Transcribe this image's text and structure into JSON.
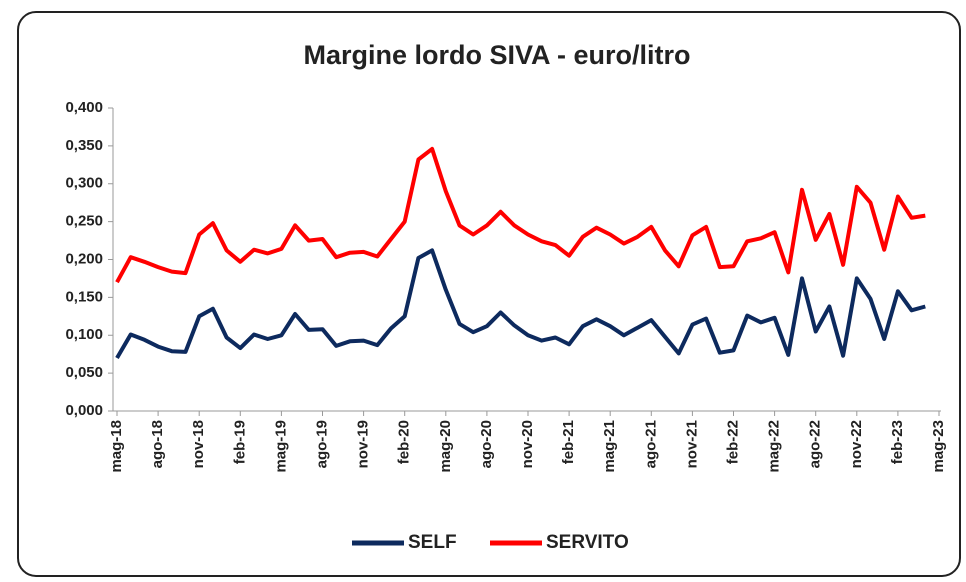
{
  "chart_data": {
    "type": "line",
    "title": "Margine lordo SIVA - euro/litro",
    "categories": [
      "mag-18",
      null,
      null,
      "ago-18",
      null,
      null,
      "nov-18",
      null,
      null,
      "feb-19",
      null,
      null,
      "mag-19",
      null,
      null,
      "ago-19",
      null,
      null,
      "nov-19",
      null,
      null,
      "feb-20",
      null,
      null,
      "mag-20",
      null,
      null,
      "ago-20",
      null,
      null,
      "nov-20",
      null,
      null,
      "feb-21",
      null,
      null,
      "mag-21",
      null,
      null,
      "ago-21",
      null,
      null,
      "nov-21",
      null,
      null,
      "feb-22",
      null,
      null,
      "mag-22",
      null,
      null,
      "ago-22",
      null,
      null,
      "nov-22",
      null,
      null,
      "feb-23",
      null,
      null,
      "mag-23"
    ],
    "series": [
      {
        "name": "SELF",
        "color": "#0d2a5e",
        "values": [
          0.07,
          0.101,
          0.094,
          0.085,
          0.079,
          0.078,
          0.125,
          0.135,
          0.097,
          0.083,
          0.101,
          0.095,
          0.1,
          0.128,
          0.107,
          0.108,
          0.086,
          0.092,
          0.093,
          0.087,
          0.109,
          0.125,
          0.202,
          0.212,
          0.16,
          0.115,
          0.104,
          0.112,
          0.13,
          0.113,
          0.1,
          0.093,
          0.097,
          0.088,
          0.112,
          0.121,
          0.112,
          0.1,
          0.11,
          0.12,
          0.098,
          0.076,
          0.114,
          0.122,
          0.077,
          0.08,
          0.126,
          0.117,
          0.123,
          0.074,
          0.175,
          0.105,
          0.138,
          0.073,
          0.175,
          0.148,
          0.095,
          0.158,
          0.133,
          0.138,
          null
        ]
      },
      {
        "name": "SERVITO",
        "color": "#ff0000",
        "values": [
          0.17,
          0.203,
          0.197,
          0.19,
          0.184,
          0.182,
          0.233,
          0.248,
          0.212,
          0.197,
          0.213,
          0.208,
          0.214,
          0.245,
          0.225,
          0.227,
          0.203,
          0.209,
          0.21,
          0.204,
          0.227,
          0.25,
          0.332,
          0.346,
          0.29,
          0.245,
          0.233,
          0.245,
          0.263,
          0.245,
          0.233,
          0.224,
          0.219,
          0.205,
          0.23,
          0.242,
          0.233,
          0.221,
          0.23,
          0.243,
          0.212,
          0.191,
          0.232,
          0.243,
          0.19,
          0.191,
          0.224,
          0.228,
          0.236,
          0.183,
          0.292,
          0.226,
          0.26,
          0.193,
          0.296,
          0.275,
          0.213,
          0.283,
          0.255,
          0.258,
          null
        ]
      }
    ],
    "ylim": [
      0,
      0.4
    ],
    "yticks": [
      {
        "value": 0,
        "label": "0,000"
      },
      {
        "value": 0.05,
        "label": "0,050"
      },
      {
        "value": 0.1,
        "label": "0,100"
      },
      {
        "value": 0.15,
        "label": "0,150"
      },
      {
        "value": 0.2,
        "label": "0,200"
      },
      {
        "value": 0.25,
        "label": "0,250"
      },
      {
        "value": 0.3,
        "label": "0,300"
      },
      {
        "value": 0.35,
        "label": "0,350"
      },
      {
        "value": 0.4,
        "label": "0,400"
      }
    ],
    "grid": false,
    "legend": "bottom"
  }
}
